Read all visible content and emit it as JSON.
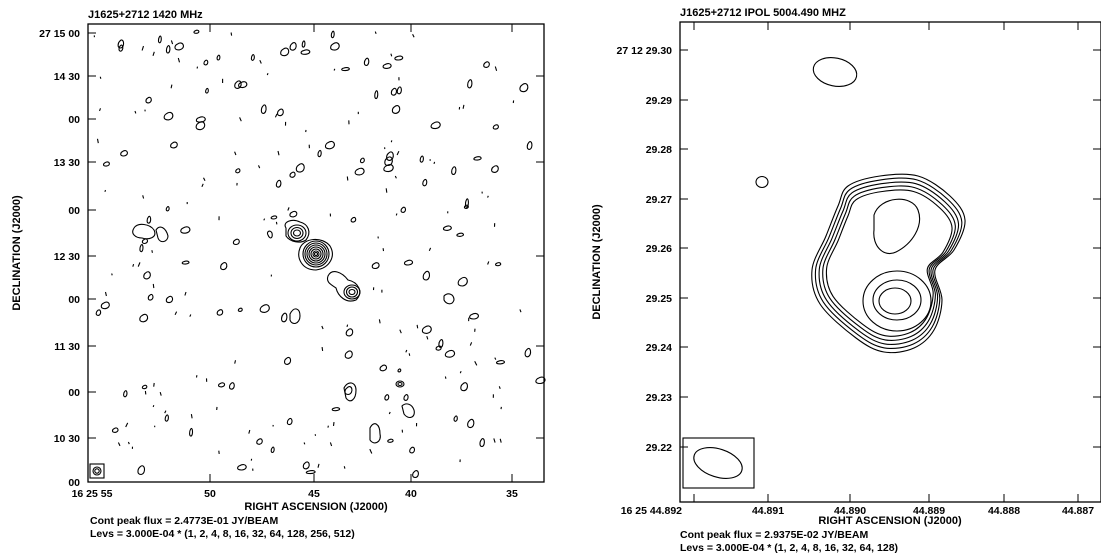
{
  "chart_data": [
    {
      "type": "contour",
      "title": "J1625+2712    1420 MHz",
      "xlabel": "RIGHT ASCENSION (J2000)",
      "ylabel": "DECLINATION (J2000)",
      "x_ticks": [
        "16 25 55",
        "50",
        "45",
        "40",
        "35"
      ],
      "y_ticks": [
        "27 15 00",
        "14 30",
        "00",
        "13 30",
        "00",
        "12 30",
        "00",
        "11 30",
        "00",
        "10 30",
        "00"
      ],
      "footer": [
        "Cont peak flux =  2.4773E-01 JY/BEAM",
        "Levs = 3.000E-04 * (1, 2, 4, 8, 16, 32, 64, 128, 256, 512)"
      ],
      "peak_flux": 0.24773,
      "base_level": 0.0003,
      "levels": [
        1,
        2,
        4,
        8,
        16,
        32,
        64,
        128,
        256,
        512
      ],
      "grid": false
    },
    {
      "type": "contour",
      "title": "J1625+2712  IPOL  5004.490 MHZ",
      "xlabel": "RIGHT ASCENSION (J2000)",
      "ylabel": "DECLINATION (J2000)",
      "x_ticks": [
        "16 25 44.892",
        "44.891",
        "44.890",
        "44.889",
        "44.888",
        "44.887"
      ],
      "y_ticks": [
        "27 12 29.30",
        "29.29",
        "29.28",
        "29.27",
        "29.26",
        "29.25",
        "29.24",
        "29.23",
        "29.22"
      ],
      "footer": [
        "Cont peak flux =  2.9375E-02 JY/BEAM",
        "Levs = 3.000E-04 * (1, 2, 4, 8, 16, 32, 64, 128)"
      ],
      "peak_flux": 0.029375,
      "base_level": 0.0003,
      "levels": [
        1,
        2,
        4,
        8,
        16,
        32,
        64,
        128
      ],
      "grid": false
    }
  ]
}
